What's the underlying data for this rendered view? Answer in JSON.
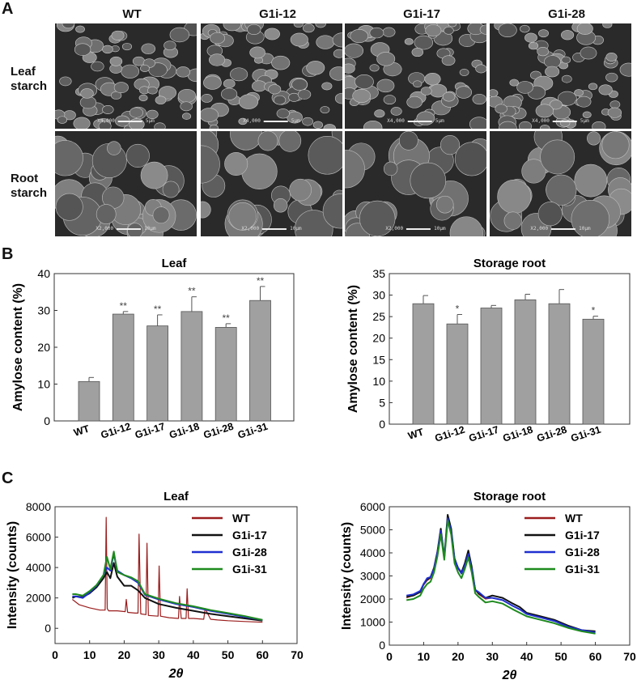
{
  "figure": {
    "panel_a": {
      "letter": "A",
      "columns": [
        "WT",
        "G1i-12",
        "G1i-17",
        "G1i-28"
      ],
      "rows": [
        {
          "label_line1": "Leaf",
          "label_line2": "starch",
          "scale_text": "X4,000",
          "scale_len": "5µm"
        },
        {
          "label_line1": "Root",
          "label_line2": "starch",
          "scale_text": "X2,000",
          "scale_len": "10µm"
        }
      ]
    },
    "panel_b": {
      "letter": "B"
    },
    "panel_c": {
      "letter": "C"
    }
  },
  "chart_data": [
    {
      "id": "B-leaf",
      "type": "bar",
      "title": "Leaf",
      "xlabel": "",
      "ylabel": "Amylose content (%)",
      "ylim": [
        0,
        40
      ],
      "yticks": [
        0,
        10,
        20,
        30,
        40
      ],
      "categories": [
        "WT",
        "G1i-12",
        "G1i-17",
        "G1i-18",
        "G1i-28",
        "G1i-31"
      ],
      "values": [
        10.7,
        29.0,
        25.8,
        29.7,
        25.4,
        32.7
      ],
      "errors": [
        1.1,
        0.7,
        3.0,
        4.0,
        1.0,
        3.8
      ],
      "significance": [
        "",
        "**",
        "**",
        "**",
        "**",
        "**"
      ],
      "bar_color": "#a0a0a0"
    },
    {
      "id": "B-root",
      "type": "bar",
      "title": "Storage root",
      "xlabel": "",
      "ylabel": "Amylose content (%)",
      "ylim": [
        0,
        35
      ],
      "yticks": [
        0,
        5,
        10,
        15,
        20,
        25,
        30,
        35
      ],
      "categories": [
        "WT",
        "G1i-12",
        "G1i-17",
        "G1i-18",
        "G1i-28",
        "G1i-31"
      ],
      "values": [
        28.0,
        23.3,
        27.0,
        28.9,
        28.0,
        24.4
      ],
      "errors": [
        1.9,
        2.2,
        0.6,
        1.3,
        3.3,
        0.7
      ],
      "significance": [
        "",
        "*",
        "",
        "",
        "",
        "*"
      ],
      "bar_color": "#a0a0a0"
    },
    {
      "id": "C-leaf",
      "type": "line",
      "title": "Leaf",
      "xlabel": "2θ",
      "ylabel": "Intensity (counts)",
      "xlim": [
        0,
        70
      ],
      "ylim": [
        -1000,
        8000
      ],
      "xticks": [
        0,
        10,
        20,
        30,
        40,
        50,
        60,
        70
      ],
      "yticks": [
        0,
        2000,
        4000,
        6000,
        8000
      ],
      "legend_position": "upper right",
      "series": [
        {
          "name": "WT",
          "color": "#9b1c1c",
          "x": [
            5,
            7,
            10,
            13,
            14.5,
            14.8,
            15.1,
            15.5,
            18,
            20.3,
            20.6,
            21,
            23.2,
            24,
            24.3,
            24.8,
            26.3,
            26.6,
            27,
            29.8,
            30.1,
            30.5,
            33,
            35.7,
            36,
            36.5,
            37.9,
            38.2,
            38.6,
            40,
            43,
            43.4,
            45,
            47,
            50,
            55,
            60
          ],
          "y": [
            1900,
            1550,
            1350,
            1200,
            1200,
            7300,
            1300,
            1150,
            1150,
            1100,
            1900,
            1050,
            1000,
            1000,
            6200,
            950,
            900,
            5600,
            850,
            800,
            4100,
            800,
            700,
            650,
            2100,
            650,
            650,
            2600,
            650,
            650,
            600,
            1300,
            600,
            550,
            500,
            450,
            400
          ]
        },
        {
          "name": "G1i-17",
          "color": "#111111",
          "x": [
            5,
            6,
            8,
            10,
            12,
            14,
            15,
            16,
            17,
            18,
            20,
            22,
            24,
            26,
            30,
            35,
            40,
            45,
            50,
            55,
            60
          ],
          "y": [
            2000,
            2100,
            2050,
            2300,
            2700,
            3300,
            3700,
            3300,
            4300,
            3400,
            2800,
            2800,
            2500,
            2000,
            1600,
            1350,
            1150,
            950,
            800,
            650,
            500
          ]
        },
        {
          "name": "G1i-28",
          "color": "#1f2fd0",
          "x": [
            5,
            6,
            8,
            10,
            12,
            14,
            15,
            16,
            17,
            18,
            20,
            22,
            24,
            26,
            30,
            35,
            40,
            45,
            50,
            55,
            60
          ],
          "y": [
            2100,
            2100,
            2000,
            2350,
            2800,
            3500,
            4000,
            3800,
            4900,
            3800,
            3500,
            3300,
            3000,
            2200,
            1900,
            1600,
            1400,
            1150,
            950,
            750,
            550
          ]
        },
        {
          "name": "G1i-31",
          "color": "#1e8a1e",
          "x": [
            5,
            6,
            8,
            10,
            12,
            14,
            15,
            16,
            17,
            18,
            20,
            22,
            24,
            26,
            30,
            35,
            40,
            45,
            50,
            55,
            60
          ],
          "y": [
            2250,
            2250,
            2150,
            2450,
            2850,
            3500,
            4700,
            3900,
            5050,
            3700,
            3500,
            3350,
            3100,
            2250,
            1950,
            1650,
            1450,
            1200,
            1000,
            800,
            550
          ]
        }
      ]
    },
    {
      "id": "C-root",
      "type": "line",
      "title": "Storage root",
      "xlabel": "2θ",
      "ylabel": "Intensity (counts)",
      "xlim": [
        0,
        70
      ],
      "ylim": [
        0,
        6000
      ],
      "xticks": [
        0,
        10,
        20,
        30,
        40,
        50,
        60,
        70
      ],
      "yticks": [
        0,
        1000,
        2000,
        3000,
        4000,
        5000,
        6000
      ],
      "legend_position": "upper right",
      "series": [
        {
          "name": "WT",
          "color": "#9b1c1c",
          "x": [
            5,
            7,
            9,
            10,
            11,
            12,
            13,
            14,
            15,
            16,
            17,
            18,
            19,
            20,
            21,
            22,
            23,
            24,
            25,
            26,
            28,
            30,
            33,
            36,
            38,
            40,
            44,
            48,
            52,
            56,
            60
          ],
          "y": [
            2050,
            2150,
            2300,
            2600,
            2800,
            2900,
            3300,
            4000,
            5000,
            3800,
            5600,
            5000,
            3700,
            3300,
            3100,
            3500,
            4050,
            3300,
            2400,
            2200,
            2000,
            2050,
            1950,
            1700,
            1550,
            1350,
            1200,
            1050,
            800,
            650,
            550
          ]
        },
        {
          "name": "G1i-17",
          "color": "#111111",
          "x": [
            5,
            7,
            9,
            10,
            11,
            12,
            13,
            14,
            15,
            16,
            17,
            18,
            19,
            20,
            21,
            22,
            23,
            24,
            25,
            26,
            28,
            30,
            33,
            36,
            38,
            40,
            44,
            48,
            52,
            56,
            60
          ],
          "y": [
            2100,
            2150,
            2300,
            2650,
            2850,
            2950,
            3350,
            4050,
            5050,
            3800,
            5650,
            5050,
            3750,
            3350,
            3150,
            3550,
            4100,
            3400,
            2400,
            2250,
            2050,
            2150,
            2050,
            1800,
            1650,
            1400,
            1250,
            1100,
            850,
            650,
            600
          ]
        },
        {
          "name": "G1i-28",
          "color": "#1f2fd0",
          "x": [
            5,
            7,
            9,
            10,
            11,
            12,
            13,
            14,
            15,
            16,
            17,
            18,
            19,
            20,
            21,
            22,
            23,
            24,
            25,
            26,
            28,
            30,
            33,
            36,
            38,
            40,
            44,
            48,
            52,
            56,
            60
          ],
          "y": [
            2150,
            2200,
            2350,
            2650,
            2900,
            2950,
            3300,
            4000,
            4950,
            3800,
            5500,
            4950,
            3700,
            3350,
            3100,
            3450,
            3950,
            3300,
            2400,
            2300,
            2050,
            2050,
            1950,
            1700,
            1550,
            1350,
            1200,
            1050,
            800,
            650,
            550
          ]
        },
        {
          "name": "G1i-31",
          "color": "#1e8a1e",
          "x": [
            5,
            7,
            9,
            10,
            11,
            12,
            13,
            14,
            15,
            16,
            17,
            18,
            19,
            20,
            21,
            22,
            23,
            24,
            25,
            26,
            28,
            30,
            33,
            36,
            38,
            40,
            44,
            48,
            52,
            56,
            60
          ],
          "y": [
            1950,
            2000,
            2150,
            2450,
            2650,
            2750,
            3150,
            3850,
            4800,
            3700,
            5400,
            4800,
            3550,
            3150,
            2900,
            3300,
            3800,
            3150,
            2250,
            2100,
            1850,
            1900,
            1800,
            1550,
            1400,
            1250,
            1100,
            950,
            750,
            600,
            500
          ]
        }
      ]
    }
  ]
}
